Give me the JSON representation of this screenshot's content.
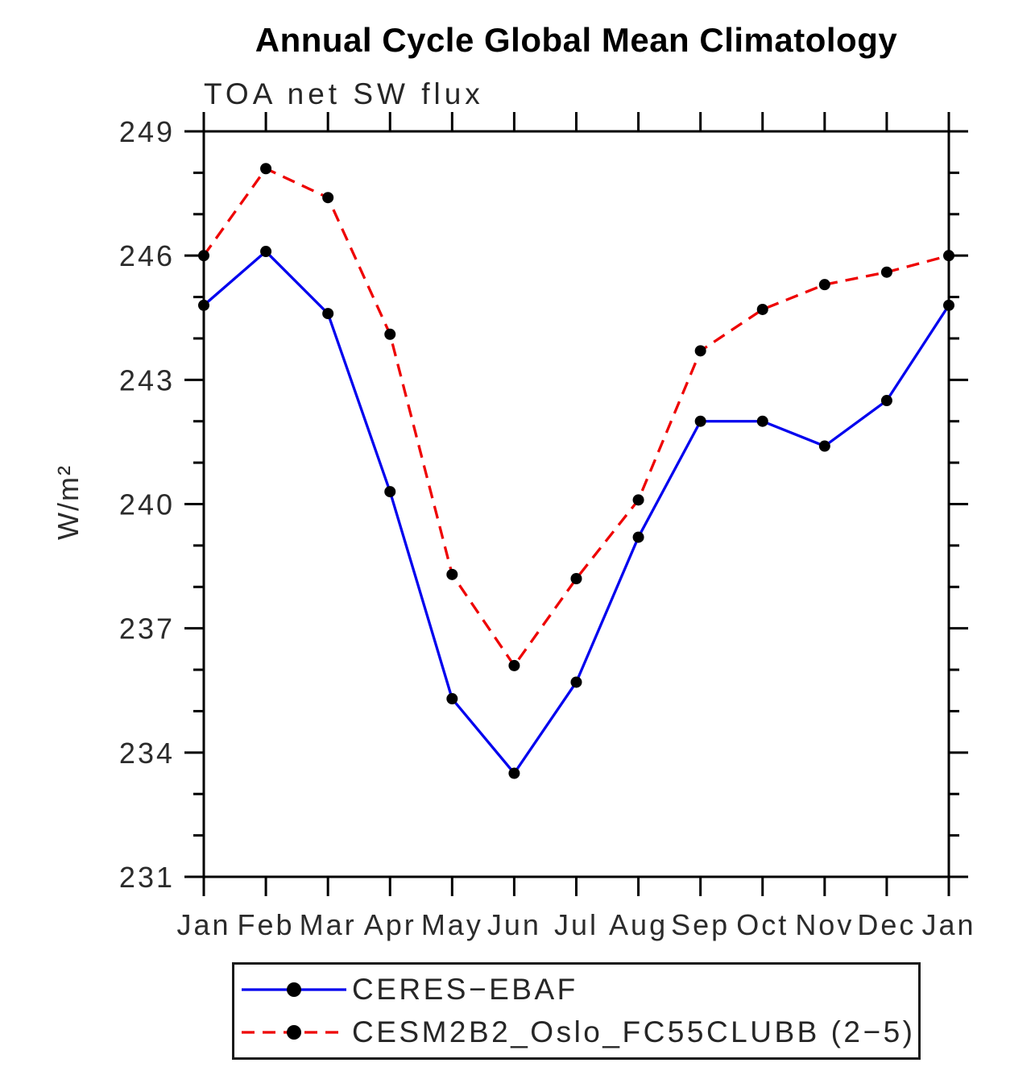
{
  "chart_data": {
    "type": "line",
    "title": "Annual Cycle Global Mean Climatology",
    "subtitle": "TOA net SW flux",
    "ylabel": "W/m²",
    "xlabel": "",
    "x_tick_labels": [
      "Jan",
      "Feb",
      "Mar",
      "Apr",
      "May",
      "Jun",
      "Jul",
      "Aug",
      "Sep",
      "Oct",
      "Nov",
      "Dec",
      "Jan"
    ],
    "ylim": [
      231,
      249
    ],
    "y_major_ticks": [
      231,
      234,
      237,
      240,
      243,
      246,
      249
    ],
    "y_minor_step": 1,
    "grid": false,
    "legend_position": "bottom",
    "axis_color": "#000000",
    "marker": "filled-circle",
    "series": [
      {
        "name": "CERES−EBAF",
        "color": "#0000ee",
        "line_style": "solid",
        "marker_color": "#000000",
        "values": [
          244.8,
          246.1,
          244.6,
          240.3,
          235.3,
          233.5,
          235.7,
          239.2,
          242.0,
          242.0,
          241.4,
          242.5,
          244.8
        ]
      },
      {
        "name": "CESM2B2_Oslo_FC55CLUBB (2−5)",
        "color": "#ee0000",
        "line_style": "dashed",
        "marker_color": "#000000",
        "values": [
          246.0,
          248.1,
          247.4,
          244.1,
          238.3,
          236.1,
          238.2,
          240.1,
          243.7,
          244.7,
          245.3,
          245.6,
          246.0
        ]
      }
    ]
  }
}
